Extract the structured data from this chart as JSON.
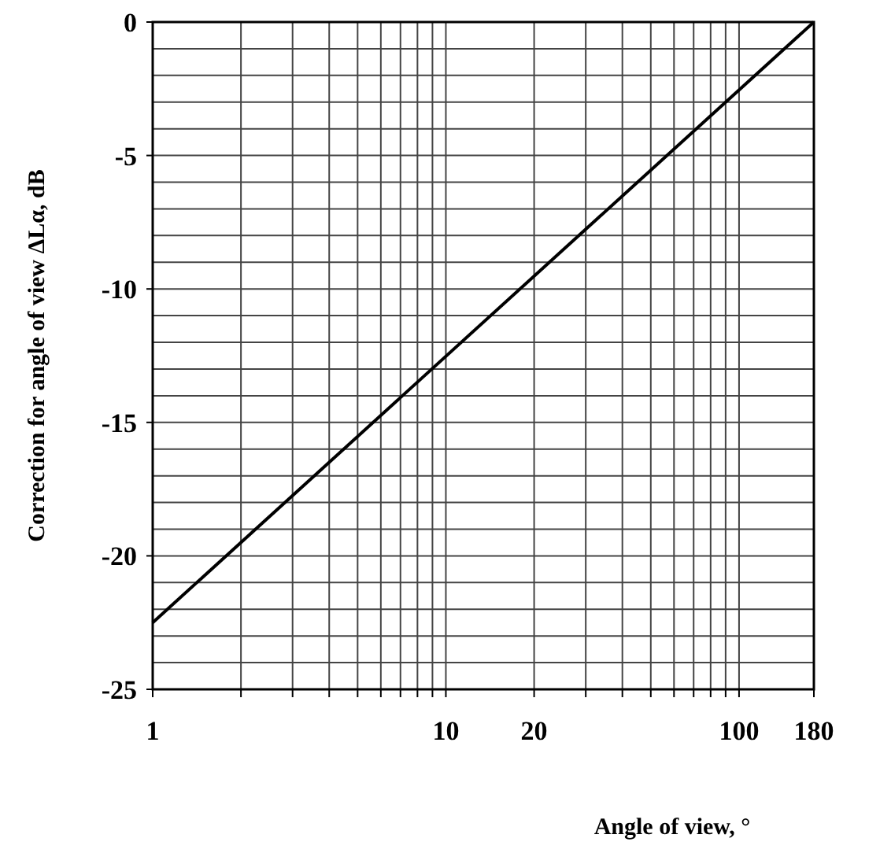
{
  "chart_data": {
    "type": "line",
    "xlabel": "Angle of view, °",
    "ylabel": "Correction for angle of view ΔLα, dB",
    "log": "x",
    "x": [
      1,
      180
    ],
    "series": [
      {
        "color": "#000000",
        "values": [
          -22.5,
          0
        ]
      }
    ],
    "xlim": [
      1,
      180
    ],
    "ylim": [
      -25,
      0
    ],
    "xticks": [
      1,
      {
        "value": 2,
        "label": null
      },
      {
        "value": 3,
        "label": null
      },
      {
        "value": 4,
        "label": null
      },
      {
        "value": 5,
        "label": null
      },
      {
        "value": 6,
        "label": null
      },
      {
        "value": 7,
        "label": null
      },
      {
        "value": 8,
        "label": null
      },
      {
        "value": 9,
        "label": null
      },
      10,
      20,
      {
        "value": 30,
        "label": null
      },
      {
        "value": 40,
        "label": null
      },
      {
        "value": 50,
        "label": null
      },
      {
        "value": 60,
        "label": null
      },
      {
        "value": 70,
        "label": null
      },
      {
        "value": 80,
        "label": null
      },
      {
        "value": 90,
        "label": null
      },
      100,
      180
    ],
    "yticks": [
      -25,
      {
        "value": -24,
        "label": null
      },
      {
        "value": -23,
        "label": null
      },
      {
        "value": -22,
        "label": null
      },
      {
        "value": -21,
        "label": null
      },
      -20,
      {
        "value": -19,
        "label": null
      },
      {
        "value": -18,
        "label": null
      },
      {
        "value": -17,
        "label": null
      },
      {
        "value": -16,
        "label": null
      },
      -15,
      {
        "value": -14,
        "label": null
      },
      {
        "value": -13,
        "label": null
      },
      {
        "value": -12,
        "label": null
      },
      {
        "value": -11,
        "label": null
      },
      -10,
      {
        "value": -9,
        "label": null
      },
      {
        "value": -8,
        "label": null
      },
      {
        "value": -7,
        "label": null
      },
      {
        "value": -6,
        "label": null
      },
      -5,
      {
        "value": -4,
        "label": null
      },
      {
        "value": -3,
        "label": null
      },
      {
        "value": -2,
        "label": null
      },
      {
        "value": -1,
        "label": null
      },
      0
    ],
    "grid": true,
    "marker": "none",
    "line_style": "solid"
  }
}
